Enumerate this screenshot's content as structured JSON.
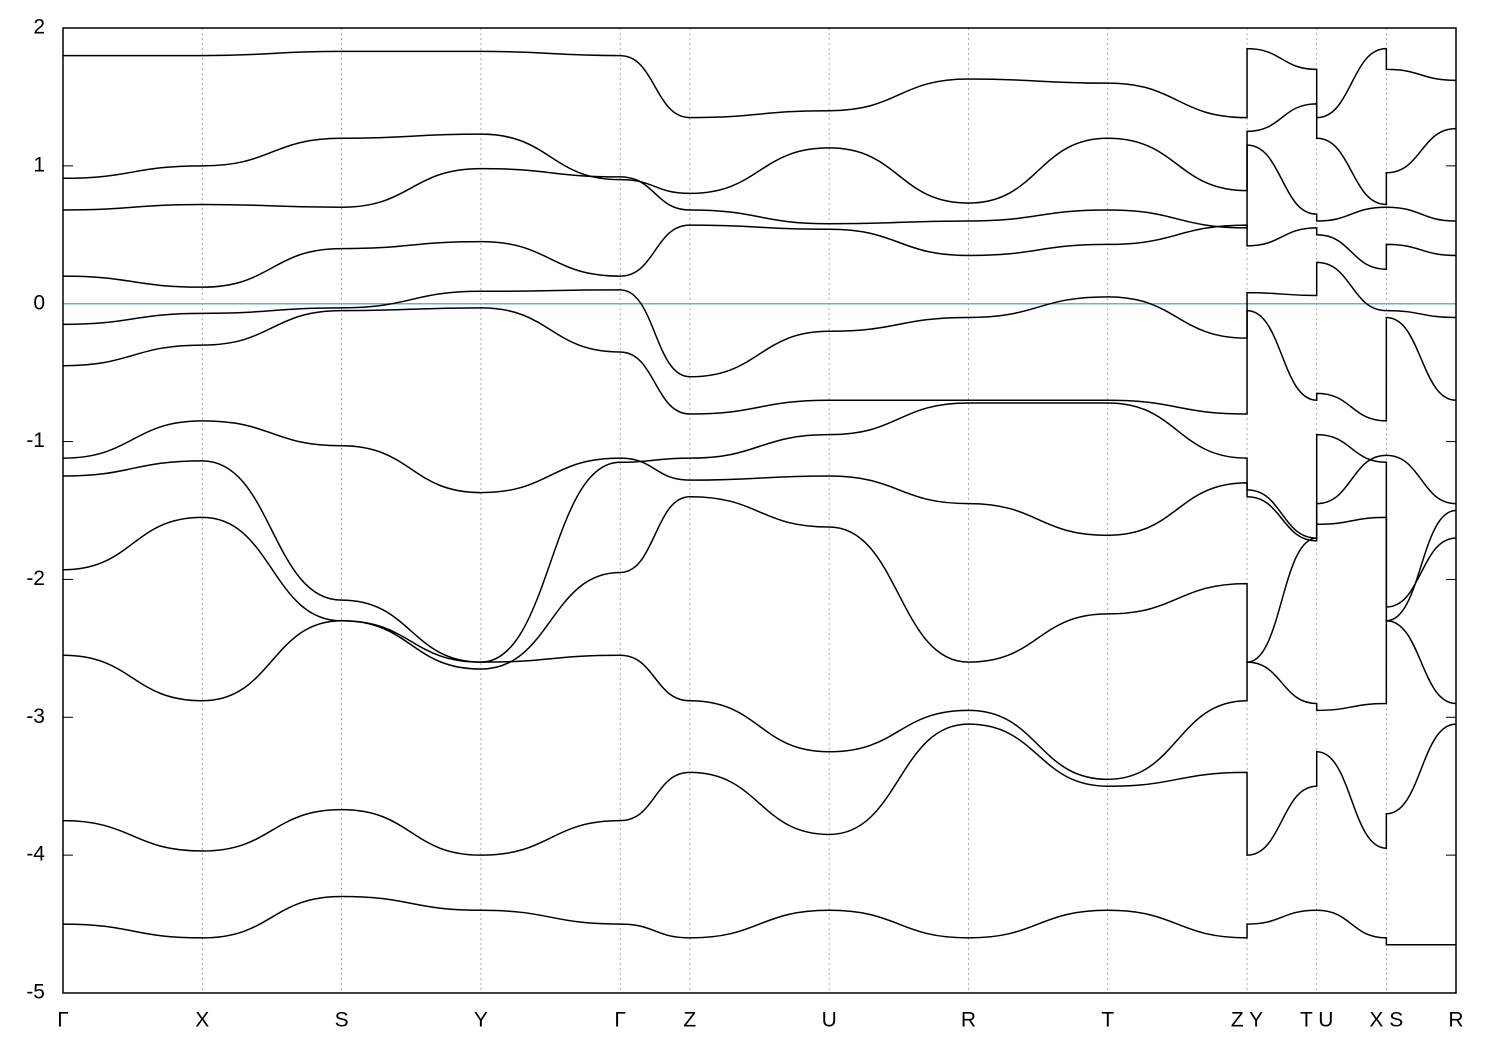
{
  "chart_data": {
    "type": "line",
    "x": [
      0,
      1,
      2,
      3,
      4,
      4.5,
      5.5,
      6.5,
      7.5,
      8.5,
      8.5,
      9,
      9,
      9.5,
      9.5,
      10
    ],
    "xlim": [
      0,
      10
    ],
    "xticks": [
      {
        "value": 0,
        "label": "Γ"
      },
      {
        "value": 1,
        "label": "X"
      },
      {
        "value": 2,
        "label": "S"
      },
      {
        "value": 3,
        "label": "Y"
      },
      {
        "value": 4,
        "label": "Γ"
      },
      {
        "value": 4.5,
        "label": "Z"
      },
      {
        "value": 5.5,
        "label": "U"
      },
      {
        "value": 6.5,
        "label": "R"
      },
      {
        "value": 7.5,
        "label": "T"
      },
      {
        "value": 8.5,
        "label": "Z Y"
      },
      {
        "value": 9,
        "label": "T U"
      },
      {
        "value": 9.5,
        "label": "X S"
      },
      {
        "value": 10,
        "label": "R"
      }
    ],
    "ylim": [
      -5,
      2
    ],
    "yticks": [
      -5,
      -4,
      -3,
      -2,
      -1,
      0,
      1,
      2
    ],
    "grid": "x",
    "zero_line": {
      "value": 0,
      "color": "#6ab0c8"
    },
    "series": [
      {
        "color": "#000000",
        "values": [
          -4.5,
          -4.6,
          -4.3,
          -4.4,
          -4.5,
          -4.6,
          -4.4,
          -4.6,
          -4.4,
          -4.6,
          -4.5,
          -4.4,
          -4.4,
          -4.6,
          -4.65,
          -4.65
        ]
      },
      {
        "color": "#000000",
        "values": [
          -3.75,
          -3.97,
          -3.67,
          -4.0,
          -3.75,
          -3.4,
          -3.85,
          -3.05,
          -3.5,
          -3.4,
          -4.0,
          -3.5,
          -3.25,
          -3.95,
          -3.7,
          -3.05
        ]
      },
      {
        "color": "#000000",
        "values": [
          -2.55,
          -2.88,
          -2.3,
          -2.6,
          -2.55,
          -2.88,
          -3.25,
          -2.95,
          -3.45,
          -2.88,
          -2.6,
          -2.9,
          -2.95,
          -2.9,
          -2.3,
          -2.9
        ]
      },
      {
        "color": "#000000",
        "values": [
          -1.93,
          -1.55,
          -2.3,
          -2.65,
          -1.95,
          -1.4,
          -1.62,
          -2.6,
          -2.25,
          -2.03,
          -2.6,
          -1.7,
          -1.6,
          -1.55,
          -2.2,
          -1.7
        ]
      },
      {
        "color": "#000000",
        "values": [
          -1.25,
          -1.14,
          -2.15,
          -2.6,
          -1.15,
          -1.12,
          -0.95,
          -0.72,
          -0.72,
          -1.12,
          -1.4,
          -1.72,
          -0.95,
          -1.15,
          -2.3,
          -1.5
        ]
      },
      {
        "color": "#000000",
        "values": [
          -1.12,
          -0.85,
          -1.03,
          -1.37,
          -1.12,
          -1.28,
          -1.25,
          -1.45,
          -1.68,
          -1.3,
          -1.35,
          -1.7,
          -1.45,
          -1.1,
          -1.1,
          -1.45
        ]
      },
      {
        "color": "#000000",
        "values": [
          -0.45,
          -0.3,
          -0.05,
          -0.03,
          -0.35,
          -0.8,
          -0.7,
          -0.7,
          -0.7,
          -0.8,
          -0.05,
          -0.7,
          -0.65,
          -0.85,
          -0.1,
          -0.7
        ]
      },
      {
        "color": "#000000",
        "values": [
          -0.15,
          -0.07,
          -0.03,
          0.09,
          0.1,
          -0.53,
          -0.2,
          -0.1,
          0.05,
          -0.25,
          0.08,
          0.06,
          0.3,
          -0.05,
          -0.05,
          -0.1
        ]
      },
      {
        "color": "#000000",
        "values": [
          0.2,
          0.12,
          0.4,
          0.45,
          0.2,
          0.57,
          0.54,
          0.35,
          0.43,
          0.57,
          0.42,
          0.55,
          0.5,
          0.25,
          0.43,
          0.35
        ]
      },
      {
        "color": "#000000",
        "values": [
          0.68,
          0.72,
          0.7,
          0.98,
          0.92,
          0.68,
          0.58,
          0.6,
          0.68,
          0.55,
          1.15,
          0.65,
          0.6,
          0.7,
          0.7,
          0.6
        ]
      },
      {
        "color": "#000000",
        "values": [
          0.91,
          1.0,
          1.2,
          1.23,
          0.9,
          0.8,
          1.13,
          0.73,
          1.2,
          0.82,
          1.25,
          1.45,
          1.2,
          0.72,
          0.95,
          1.27
        ]
      },
      {
        "color": "#000000",
        "values": [
          1.8,
          1.8,
          1.83,
          1.83,
          1.8,
          1.35,
          1.4,
          1.63,
          1.6,
          1.35,
          1.85,
          1.7,
          1.35,
          1.85,
          1.7,
          1.62
        ]
      }
    ]
  }
}
